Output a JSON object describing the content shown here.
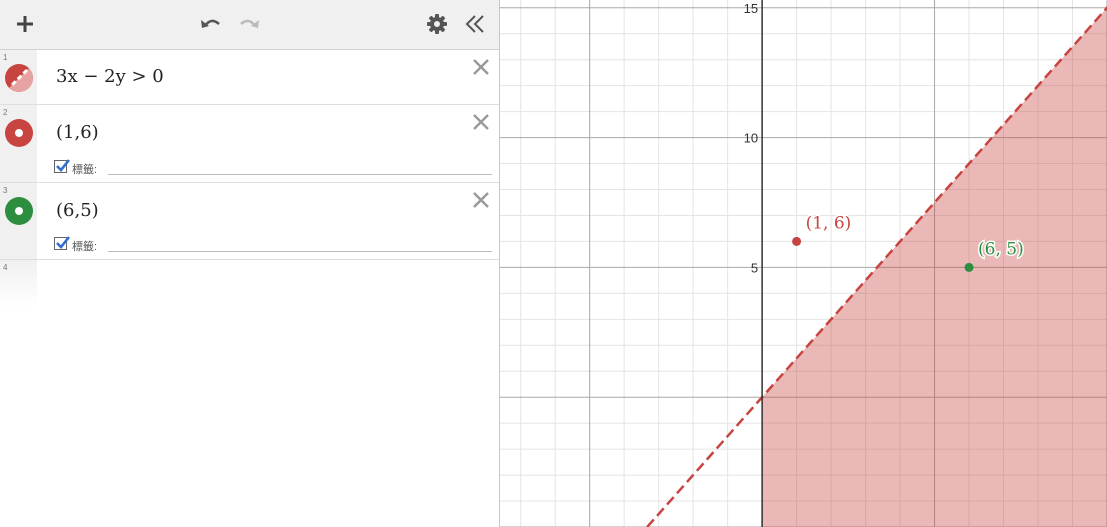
{
  "toolbar": {
    "add": "add-expression",
    "undo": "undo",
    "redo": "redo",
    "settings": "settings",
    "collapse": "collapse-panel"
  },
  "expressions": [
    {
      "index": "1",
      "latex": "3x − 2y > 0",
      "color": "#c74440",
      "type": "inequality"
    },
    {
      "index": "2",
      "latex": "(1,6)",
      "color": "#c74440",
      "type": "point",
      "label_checkbox": "標籤:"
    },
    {
      "index": "3",
      "latex": "(6,5)",
      "color": "#2d8e3f",
      "type": "point",
      "label_checkbox": "標籤:"
    },
    {
      "index": "4",
      "latex": "",
      "type": "empty"
    }
  ],
  "graph": {
    "y_ticks": [
      "5",
      "10",
      "15"
    ],
    "y_tick_values": [
      5,
      10,
      15
    ],
    "x_min": -7.6,
    "x_max": 10.0,
    "y_min": -5.0,
    "y_max": 15.3,
    "points": [
      {
        "x": 1,
        "y": 6,
        "label": "(1, 6)",
        "color": "#c74440"
      },
      {
        "x": 6,
        "y": 5,
        "label": "(6, 5)",
        "color": "#2d8e3f"
      }
    ],
    "inequality": {
      "boundary": "y = 1.5x",
      "style": "dashed",
      "fill_side": "below",
      "color": "#c74440"
    }
  }
}
